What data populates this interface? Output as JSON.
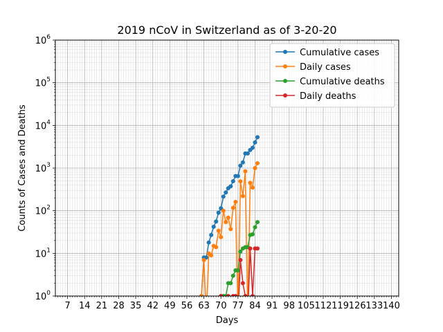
{
  "chart_data": {
    "type": "line",
    "title": "2019 nCoV in Switzerland as of 3-20-20",
    "xlabel": "Days",
    "ylabel": "Counts of Cases and Deaths",
    "xlim": [
      2,
      143
    ],
    "ylim": [
      1,
      1000000
    ],
    "yscale": "log",
    "grid": true,
    "legend_position": "top-right",
    "x_ticks": [
      7,
      14,
      21,
      28,
      35,
      42,
      49,
      56,
      63,
      70,
      77,
      84,
      91,
      98,
      105,
      112,
      119,
      126,
      133,
      140
    ],
    "x_tick_labels": [
      "7",
      "14",
      "21",
      "28",
      "35",
      "42",
      "49",
      "56",
      "63",
      "70",
      "77",
      "84",
      "91",
      "98",
      "105",
      "112",
      "119",
      "126",
      "133",
      "140"
    ],
    "y_ticks": [
      1,
      10,
      100,
      1000,
      10000,
      100000,
      1000000
    ],
    "y_tick_labels": [
      {
        "base": "10",
        "exp": "0"
      },
      {
        "base": "10",
        "exp": "1"
      },
      {
        "base": "10",
        "exp": "2"
      },
      {
        "base": "10",
        "exp": "3"
      },
      {
        "base": "10",
        "exp": "4"
      },
      {
        "base": "10",
        "exp": "5"
      },
      {
        "base": "10",
        "exp": "6"
      }
    ],
    "series": [
      {
        "name": "Cumulative cases",
        "color": "#1f77b4",
        "x": [
          62,
          63,
          64,
          65,
          66,
          67,
          68,
          69,
          70,
          71,
          72,
          73,
          74,
          75,
          76,
          77,
          78,
          79,
          80,
          81,
          82,
          83,
          84,
          85
        ],
        "y": [
          1,
          8,
          8,
          18,
          27,
          42,
          56,
          90,
          114,
          214,
          268,
          337,
          374,
          491,
          652,
          652,
          1139,
          1359,
          2200,
          2200,
          2650,
          2999,
          4000,
          5300
        ]
      },
      {
        "name": "Daily cases",
        "color": "#ff7f0e",
        "x": [
          62,
          63,
          64,
          65,
          66,
          67,
          68,
          69,
          70,
          71,
          72,
          73,
          74,
          75,
          76,
          77,
          78,
          79,
          80,
          81,
          82,
          83,
          84,
          85
        ],
        "y": [
          1,
          7,
          0,
          10,
          9,
          15,
          14,
          34,
          24,
          100,
          54,
          69,
          37,
          117,
          161,
          0,
          487,
          220,
          841,
          0,
          450,
          349,
          1001,
          1300
        ]
      },
      {
        "name": "Cumulative deaths",
        "color": "#2ca02c",
        "x": [
          70,
          71,
          72,
          73,
          74,
          75,
          76,
          77,
          78,
          79,
          80,
          81,
          82,
          83,
          84,
          85
        ],
        "y": [
          1,
          1,
          1,
          2,
          2,
          3,
          4,
          4,
          11,
          13,
          14,
          14,
          27,
          28,
          41,
          54
        ]
      },
      {
        "name": "Daily deaths",
        "color": "#d62728",
        "x": [
          70,
          71,
          72,
          73,
          74,
          75,
          76,
          77,
          78,
          79,
          80,
          81,
          82,
          83,
          84,
          85
        ],
        "y": [
          1,
          0,
          0,
          1,
          0,
          1,
          1,
          0,
          7,
          2,
          1,
          0,
          13,
          1,
          13,
          13
        ]
      }
    ]
  }
}
